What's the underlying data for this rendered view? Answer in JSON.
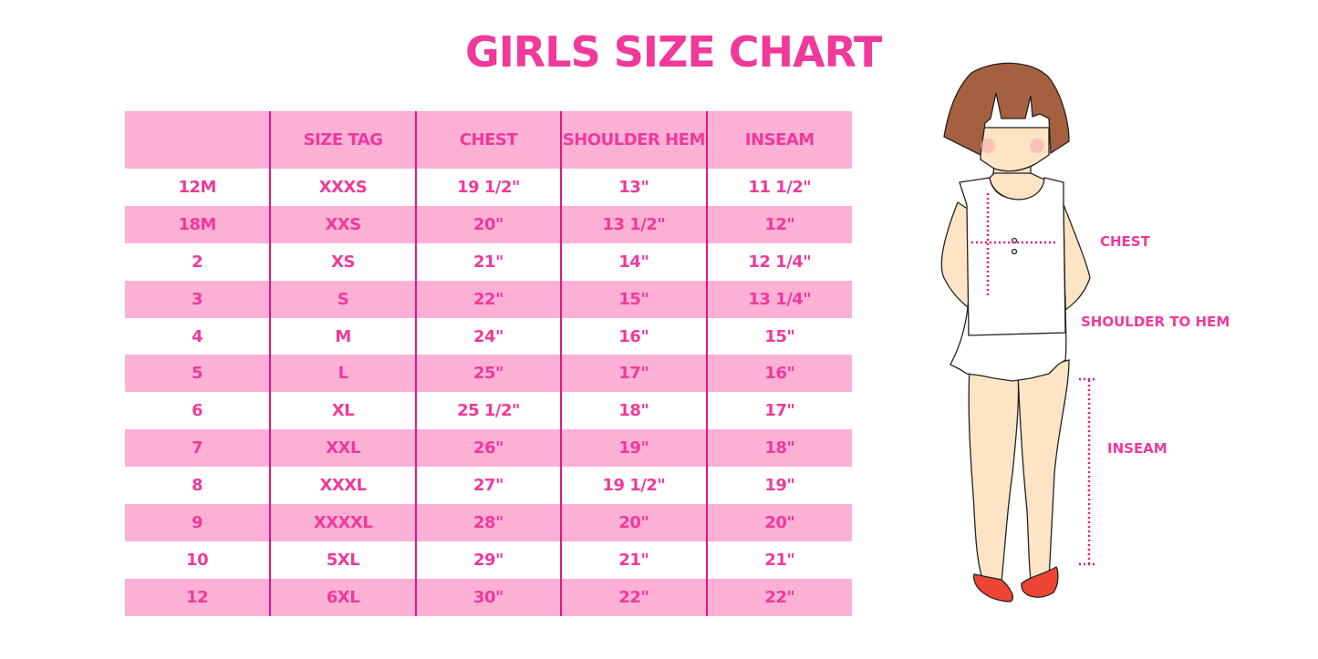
{
  "title": "GIRLS SIZE CHART",
  "table": {
    "headers": [
      "",
      "SIZE TAG",
      "CHEST",
      "SHOULDER HEM",
      "INSEAM"
    ],
    "rows": [
      [
        "12M",
        "XXXS",
        "19 1/2\"",
        "13\"",
        "11 1/2\""
      ],
      [
        "18M",
        "XXS",
        "20\"",
        "13 1/2\"",
        "12\""
      ],
      [
        "2",
        "XS",
        "21\"",
        "14\"",
        "12 1/4\""
      ],
      [
        "3",
        "S",
        "22\"",
        "15\"",
        "13 1/4\""
      ],
      [
        "4",
        "M",
        "24\"",
        "16\"",
        "15\""
      ],
      [
        "5",
        "L",
        "25\"",
        "17\"",
        "16\""
      ],
      [
        "6",
        "XL",
        "25 1/2\"",
        "18\"",
        "17\""
      ],
      [
        "7",
        "XXL",
        "26\"",
        "19\"",
        "18\""
      ],
      [
        "8",
        "XXXL",
        "27\"",
        "19 1/2\"",
        "19\""
      ],
      [
        "9",
        "XXXXL",
        "28\"",
        "20\"",
        "20\""
      ],
      [
        "10",
        "5XL",
        "29\"",
        "21\"",
        "21\""
      ],
      [
        "12",
        "6XL",
        "30\"",
        "22\"",
        "22\""
      ]
    ]
  },
  "illustration": {
    "labels": {
      "chest": "CHEST",
      "shoulder_to_hem": "SHOULDER TO HEM",
      "inseam": "INSEAM"
    }
  },
  "colors": {
    "accent": "#f0399a",
    "row_fill": "#fcb0d6",
    "divider": "#e6157f"
  }
}
